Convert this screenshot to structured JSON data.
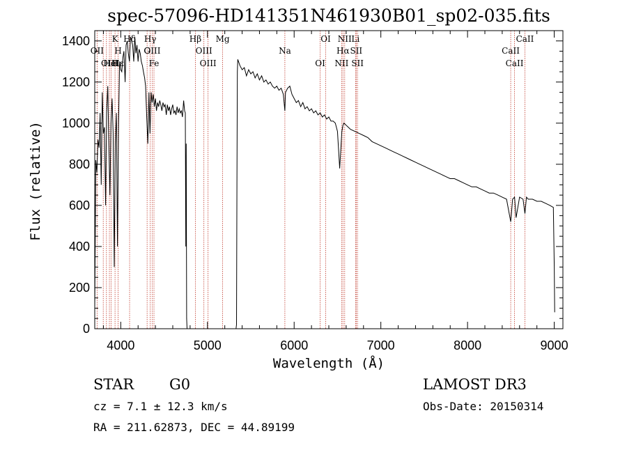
{
  "chart_data": {
    "type": "line",
    "title": "spec-57096-HD141351N461930B01_sp02-035.fits",
    "xlabel": "Wavelength (Å)",
    "ylabel": "Flux (relative)",
    "xlim": [
      3700,
      9100
    ],
    "ylim": [
      0,
      1450
    ],
    "xticks": [
      4000,
      5000,
      6000,
      7000,
      8000,
      9000
    ],
    "yticks": [
      0,
      200,
      400,
      600,
      800,
      1000,
      1200,
      1400
    ],
    "xtick_labels": [
      "4000",
      "5000",
      "6000",
      "7000",
      "8000",
      "9000"
    ],
    "ytick_labels": [
      "0",
      "200",
      "400",
      "600",
      "800",
      "1000",
      "1200",
      "1400"
    ],
    "series": [
      {
        "name": "flux",
        "x": [
          3700,
          3712,
          3725,
          3737,
          3750,
          3762,
          3775,
          3787,
          3800,
          3812,
          3825,
          3837,
          3850,
          3862,
          3875,
          3887,
          3900,
          3912,
          3925,
          3937,
          3950,
          3962,
          3975,
          3987,
          4000,
          4012,
          4025,
          4037,
          4050,
          4062,
          4075,
          4087,
          4100,
          4112,
          4125,
          4137,
          4150,
          4162,
          4175,
          4187,
          4200,
          4212,
          4225,
          4237,
          4250,
          4262,
          4275,
          4287,
          4300,
          4312,
          4325,
          4337,
          4350,
          4362,
          4375,
          4387,
          4400,
          4412,
          4425,
          4437,
          4450,
          4462,
          4475,
          4487,
          4500,
          4512,
          4525,
          4537,
          4550,
          4562,
          4575,
          4587,
          4600,
          4612,
          4625,
          4637,
          4650,
          4662,
          4675,
          4687,
          4700,
          4712,
          4725,
          4737,
          4745,
          4750,
          4755,
          4760,
          4765,
          4770,
          5330,
          5335,
          5340,
          5345,
          5350,
          5375,
          5400,
          5425,
          5450,
          5475,
          5500,
          5525,
          5550,
          5575,
          5600,
          5625,
          5650,
          5675,
          5700,
          5725,
          5750,
          5775,
          5800,
          5825,
          5850,
          5875,
          5893,
          5900,
          5925,
          5950,
          5975,
          6000,
          6025,
          6050,
          6075,
          6100,
          6125,
          6150,
          6175,
          6200,
          6225,
          6250,
          6275,
          6300,
          6325,
          6350,
          6375,
          6400,
          6425,
          6450,
          6475,
          6500,
          6525,
          6550,
          6563,
          6575,
          6600,
          6625,
          6650,
          6700,
          6750,
          6800,
          6850,
          6900,
          6950,
          7000,
          7050,
          7100,
          7150,
          7200,
          7250,
          7300,
          7350,
          7400,
          7450,
          7500,
          7550,
          7600,
          7650,
          7700,
          7750,
          7800,
          7850,
          7900,
          7950,
          8000,
          8050,
          8100,
          8150,
          8200,
          8250,
          8300,
          8350,
          8400,
          8450,
          8498,
          8520,
          8542,
          8560,
          8600,
          8640,
          8662,
          8680,
          8700,
          8750,
          8800,
          8850,
          8900,
          8950,
          8990,
          9000,
          9005
        ],
        "y": [
          100,
          820,
          760,
          920,
          880,
          1050,
          700,
          1150,
          950,
          980,
          600,
          1050,
          1180,
          900,
          650,
          1000,
          1120,
          950,
          300,
          900,
          1050,
          400,
          1000,
          1300,
          1260,
          1250,
          1320,
          1350,
          1200,
          1380,
          1400,
          1340,
          1300,
          1420,
          1400,
          1380,
          1300,
          1420,
          1340,
          1380,
          1300,
          1360,
          1340,
          1300,
          1280,
          1250,
          1220,
          1180,
          1020,
          900,
          1150,
          950,
          1150,
          1100,
          1140,
          1080,
          1120,
          1060,
          1100,
          1080,
          1110,
          1090,
          1060,
          1100,
          1080,
          1090,
          1040,
          1090,
          1060,
          1080,
          1040,
          1070,
          1090,
          1050,
          1060,
          1040,
          1080,
          1050,
          1070,
          1050,
          1060,
          1030,
          1110,
          1060,
          1050,
          400,
          900,
          50,
          0,
          0,
          0,
          20,
          700,
          1250,
          1310,
          1280,
          1260,
          1270,
          1230,
          1260,
          1240,
          1250,
          1220,
          1240,
          1210,
          1230,
          1200,
          1210,
          1190,
          1200,
          1180,
          1170,
          1180,
          1160,
          1170,
          1140,
          1060,
          1150,
          1170,
          1180,
          1140,
          1120,
          1100,
          1110,
          1080,
          1100,
          1070,
          1080,
          1060,
          1070,
          1050,
          1060,
          1040,
          1050,
          1030,
          1040,
          1020,
          1030,
          1010,
          1010,
          1000,
          960,
          780,
          960,
          990,
          1000,
          990,
          980,
          970,
          960,
          950,
          940,
          930,
          910,
          900,
          890,
          880,
          870,
          860,
          850,
          840,
          830,
          820,
          810,
          800,
          790,
          780,
          770,
          760,
          750,
          740,
          730,
          730,
          720,
          710,
          700,
          690,
          690,
          680,
          670,
          660,
          660,
          650,
          640,
          630,
          520,
          630,
          640,
          540,
          640,
          630,
          560,
          640,
          630,
          630,
          620,
          620,
          610,
          600,
          590,
          300,
          80
        ]
      }
    ],
    "line_labels": [
      {
        "label": "Hδ",
        "x": 4102
      },
      {
        "label": "OII",
        "x": 3727
      },
      {
        "label": "OIII",
        "x": 3869
      },
      {
        "label": "K",
        "x": 3934
      },
      {
        "label": "H",
        "x": 3969
      },
      {
        "label": "HeI",
        "x": 3889
      },
      {
        "label": "Hγ",
        "x": 4340
      },
      {
        "label": "OIII",
        "x": 4363
      },
      {
        "label": "Hε",
        "x": 3970
      },
      {
        "label": "Hβ",
        "x": 4861
      },
      {
        "label": "OIII",
        "x": 4959
      },
      {
        "label": "OIII",
        "x": 5007
      },
      {
        "label": "Mg",
        "x": 5175
      },
      {
        "label": "Na",
        "x": 5893
      },
      {
        "label": "OI",
        "x": 6300
      },
      {
        "label": "OI",
        "x": 6364
      },
      {
        "label": "Hα",
        "x": 6563
      },
      {
        "label": "NII",
        "x": 6548
      },
      {
        "label": "NII",
        "x": 6583
      },
      {
        "label": "SII",
        "x": 6716
      },
      {
        "label": "SII",
        "x": 6731
      },
      {
        "label": "Li",
        "x": 6708
      },
      {
        "label": "CaII",
        "x": 8498
      },
      {
        "label": "CaII",
        "x": 8542
      },
      {
        "label": "CaII",
        "x": 8662
      },
      {
        "label": "G",
        "x": 4304
      },
      {
        "label": "Fe",
        "x": 4383
      }
    ],
    "vlines": [
      3727,
      3798,
      3835,
      3869,
      3889,
      3934,
      3969,
      4102,
      4304,
      4340,
      4363,
      4383,
      4861,
      4959,
      5007,
      5175,
      5893,
      6300,
      6364,
      6548,
      6563,
      6583,
      6708,
      6716,
      6731,
      8498,
      8542,
      8662
    ],
    "grid": false
  },
  "info": {
    "object_class": "STAR",
    "subclass": "G0",
    "survey": "LAMOST DR3",
    "redshift": "cz = 7.1 ± 12.3 km/s",
    "obs_date": "Obs-Date: 20150314",
    "coords": "RA = 211.62873, DEC =  44.89199"
  },
  "colors": {
    "spectrum": "#000000",
    "line_marker": "#c0392b"
  }
}
